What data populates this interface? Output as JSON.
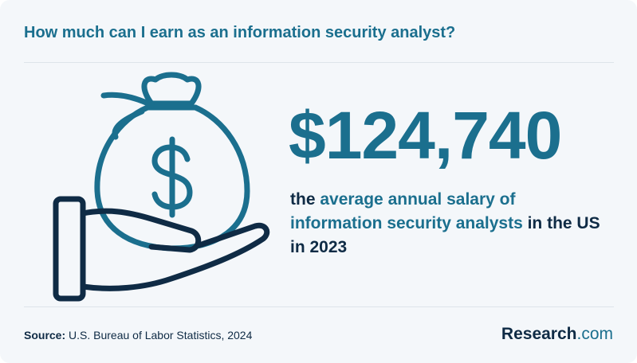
{
  "header": {
    "title": "How much can I earn as an information security analyst?"
  },
  "stat": {
    "value": "$124,740",
    "description": [
      "the ",
      "average annual salary of information security analysts",
      " in the US in 2023"
    ]
  },
  "footer": {
    "source_label": "Source:",
    "source": "U.S. Bureau of Labor Statistics, 2024",
    "brand": [
      "Research",
      ".com"
    ]
  }
}
